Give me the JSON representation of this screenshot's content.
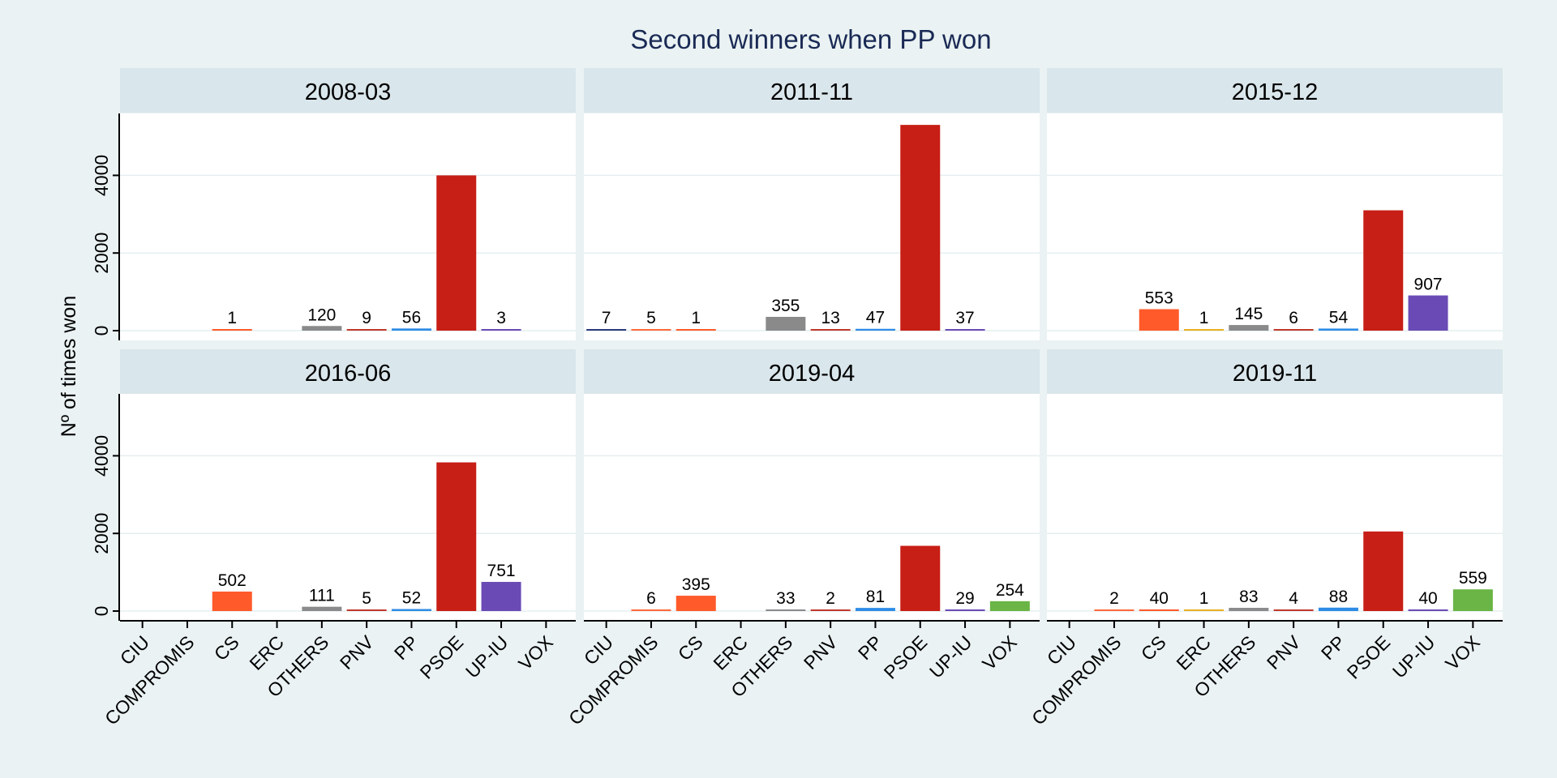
{
  "chart_data": {
    "type": "bar",
    "title": "Second winners when PP won",
    "ylabel": "Nº of times won",
    "xlabel": "",
    "ylim": [
      0,
      5600
    ],
    "yticks": [
      0,
      2000,
      4000
    ],
    "grid": true,
    "legend": "none",
    "categories": [
      "CIU",
      "COMPROMIS",
      "CS",
      "ERC",
      "OTHERS",
      "PNV",
      "PP",
      "PSOE",
      "UP-IU",
      "VOX"
    ],
    "category_colors": {
      "CIU": "#2a3a7a",
      "COMPROMIS": "#ff6a3a",
      "CS": "#ff5a2a",
      "ERC": "#e8b020",
      "OTHERS": "#8a8a8a",
      "PNV": "#c0392b",
      "PP": "#2e8ce6",
      "PSOE": "#c71e16",
      "UP-IU": "#6a4bb5",
      "VOX": "#6ab545"
    },
    "panels": [
      {
        "name": "2008-03",
        "values": [
          null,
          null,
          1,
          null,
          120,
          9,
          56,
          4000,
          3,
          null
        ],
        "labels": [
          "",
          "",
          "1",
          "",
          "120",
          "9",
          "56",
          "",
          "3",
          ""
        ]
      },
      {
        "name": "2011-11",
        "values": [
          7,
          5,
          1,
          null,
          355,
          13,
          47,
          5300,
          37,
          null
        ],
        "labels": [
          "7",
          "5",
          "1",
          "",
          "355",
          "13",
          "47",
          "",
          "37",
          ""
        ]
      },
      {
        "name": "2015-12",
        "values": [
          null,
          null,
          553,
          1,
          145,
          6,
          54,
          3100,
          907,
          null
        ],
        "labels": [
          "",
          "",
          "553",
          "1",
          "145",
          "6",
          "54",
          "",
          "907",
          ""
        ]
      },
      {
        "name": "2016-06",
        "values": [
          null,
          null,
          502,
          null,
          111,
          5,
          52,
          3830,
          751,
          null
        ],
        "labels": [
          "",
          "",
          "502",
          "",
          "111",
          "5",
          "52",
          "",
          "751",
          ""
        ]
      },
      {
        "name": "2019-04",
        "values": [
          null,
          6,
          395,
          null,
          33,
          2,
          81,
          1680,
          29,
          254
        ],
        "labels": [
          "",
          "6",
          "395",
          "",
          "33",
          "2",
          "81",
          "",
          "29",
          "254"
        ]
      },
      {
        "name": "2019-11",
        "values": [
          null,
          2,
          40,
          1,
          83,
          4,
          88,
          2050,
          40,
          559
        ],
        "labels": [
          "",
          "2",
          "40",
          "1",
          "83",
          "4",
          "88",
          "",
          "40",
          "559"
        ]
      }
    ]
  }
}
